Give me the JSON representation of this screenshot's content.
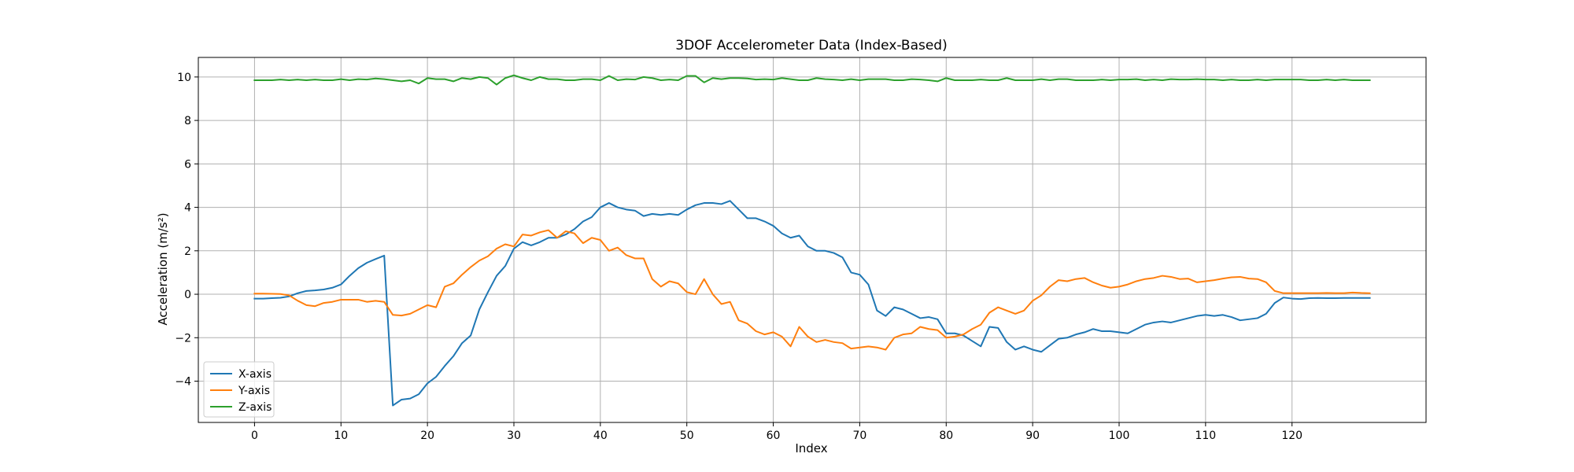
{
  "chart_data": {
    "type": "line",
    "title": "3DOF Accelerometer Data (Index-Based)",
    "xlabel": "Index",
    "ylabel": "Acceleration (m/s²)",
    "xlim": [
      -6.5,
      135.5
    ],
    "ylim": [
      -5.9,
      10.9
    ],
    "xticks": [
      0,
      10,
      20,
      30,
      40,
      50,
      60,
      70,
      80,
      90,
      100,
      110,
      120
    ],
    "yticks": [
      -4,
      -2,
      0,
      2,
      4,
      6,
      8,
      10
    ],
    "grid": true,
    "legend_position": "bottom-left",
    "x_start": 0,
    "series": [
      {
        "name": "X-axis",
        "color": "#1f77b4",
        "values": [
          -0.2,
          -0.2,
          -0.18,
          -0.16,
          -0.1,
          0.05,
          0.15,
          0.18,
          0.22,
          0.3,
          0.45,
          0.85,
          1.2,
          1.45,
          1.62,
          1.78,
          -5.12,
          -4.85,
          -4.8,
          -4.6,
          -4.1,
          -3.8,
          -3.3,
          -2.85,
          -2.25,
          -1.9,
          -0.7,
          0.1,
          0.85,
          1.3,
          2.1,
          2.4,
          2.25,
          2.4,
          2.6,
          2.6,
          2.75,
          3.0,
          3.35,
          3.55,
          4.0,
          4.2,
          4.0,
          3.9,
          3.85,
          3.6,
          3.7,
          3.65,
          3.7,
          3.65,
          3.9,
          4.1,
          4.2,
          4.2,
          4.15,
          4.3,
          3.9,
          3.5,
          3.5,
          3.35,
          3.15,
          2.8,
          2.6,
          2.7,
          2.2,
          2.0,
          2.0,
          1.9,
          1.7,
          1.0,
          0.9,
          0.45,
          -0.75,
          -1.0,
          -0.6,
          -0.7,
          -0.9,
          -1.1,
          -1.05,
          -1.15,
          -1.8,
          -1.8,
          -1.9,
          -2.15,
          -2.4,
          -1.5,
          -1.55,
          -2.2,
          -2.55,
          -2.4,
          -2.55,
          -2.65,
          -2.35,
          -2.05,
          -2.0,
          -1.85,
          -1.75,
          -1.6,
          -1.7,
          -1.7,
          -1.75,
          -1.8,
          -1.6,
          -1.4,
          -1.3,
          -1.25,
          -1.3,
          -1.2,
          -1.1,
          -1.0,
          -0.95,
          -1.0,
          -0.95,
          -1.05,
          -1.2,
          -1.15,
          -1.1,
          -0.9,
          -0.4,
          -0.15,
          -0.2,
          -0.22,
          -0.18,
          -0.17,
          -0.18,
          -0.18,
          -0.17,
          -0.17,
          -0.17,
          -0.17
        ]
      },
      {
        "name": "Y-axis",
        "color": "#ff7f0e",
        "values": [
          0.03,
          0.03,
          0.02,
          0.01,
          -0.05,
          -0.3,
          -0.5,
          -0.55,
          -0.4,
          -0.35,
          -0.25,
          -0.25,
          -0.25,
          -0.35,
          -0.3,
          -0.35,
          -0.95,
          -0.98,
          -0.9,
          -0.7,
          -0.5,
          -0.6,
          0.35,
          0.5,
          0.9,
          1.25,
          1.55,
          1.75,
          2.1,
          2.3,
          2.2,
          2.75,
          2.7,
          2.85,
          2.95,
          2.6,
          2.9,
          2.8,
          2.35,
          2.6,
          2.5,
          2.0,
          2.15,
          1.8,
          1.65,
          1.65,
          0.7,
          0.35,
          0.6,
          0.5,
          0.1,
          0.0,
          0.7,
          0.0,
          -0.45,
          -0.35,
          -1.2,
          -1.35,
          -1.7,
          -1.85,
          -1.75,
          -1.95,
          -2.4,
          -1.5,
          -1.95,
          -2.2,
          -2.1,
          -2.2,
          -2.25,
          -2.5,
          -2.45,
          -2.4,
          -2.45,
          -2.55,
          -2.0,
          -1.85,
          -1.8,
          -1.5,
          -1.6,
          -1.65,
          -2.0,
          -1.95,
          -1.85,
          -1.6,
          -1.4,
          -0.85,
          -0.6,
          -0.75,
          -0.9,
          -0.75,
          -0.3,
          -0.05,
          0.35,
          0.65,
          0.6,
          0.7,
          0.75,
          0.55,
          0.4,
          0.3,
          0.35,
          0.45,
          0.6,
          0.7,
          0.75,
          0.85,
          0.8,
          0.7,
          0.72,
          0.55,
          0.6,
          0.65,
          0.72,
          0.78,
          0.8,
          0.72,
          0.7,
          0.55,
          0.15,
          0.05,
          0.05,
          0.05,
          0.05,
          0.05,
          0.06,
          0.05,
          0.05,
          0.08,
          0.06,
          0.05
        ]
      },
      {
        "name": "Z-axis",
        "color": "#2ca02c",
        "values": [
          9.85,
          9.85,
          9.85,
          9.88,
          9.85,
          9.88,
          9.85,
          9.88,
          9.85,
          9.85,
          9.9,
          9.85,
          9.9,
          9.88,
          9.93,
          9.9,
          9.85,
          9.8,
          9.85,
          9.7,
          9.95,
          9.9,
          9.9,
          9.8,
          9.95,
          9.9,
          10.0,
          9.95,
          9.65,
          9.95,
          10.08,
          9.95,
          9.85,
          10.0,
          9.9,
          9.9,
          9.85,
          9.85,
          9.9,
          9.9,
          9.85,
          10.05,
          9.85,
          9.9,
          9.88,
          10.0,
          9.95,
          9.85,
          9.88,
          9.85,
          10.05,
          10.05,
          9.75,
          9.95,
          9.9,
          9.95,
          9.95,
          9.93,
          9.88,
          9.9,
          9.88,
          9.95,
          9.9,
          9.85,
          9.85,
          9.95,
          9.9,
          9.88,
          9.85,
          9.9,
          9.85,
          9.9,
          9.9,
          9.9,
          9.85,
          9.85,
          9.9,
          9.88,
          9.85,
          9.8,
          9.95,
          9.85,
          9.85,
          9.85,
          9.88,
          9.85,
          9.85,
          9.95,
          9.85,
          9.85,
          9.85,
          9.9,
          9.85,
          9.9,
          9.9,
          9.85,
          9.85,
          9.85,
          9.88,
          9.85,
          9.88,
          9.88,
          9.9,
          9.85,
          9.88,
          9.85,
          9.9,
          9.88,
          9.88,
          9.9,
          9.88,
          9.88,
          9.85,
          9.88,
          9.85,
          9.85,
          9.88,
          9.85,
          9.88,
          9.88,
          9.88,
          9.88,
          9.85,
          9.85,
          9.88,
          9.85,
          9.88,
          9.85,
          9.85,
          9.85
        ]
      }
    ]
  }
}
